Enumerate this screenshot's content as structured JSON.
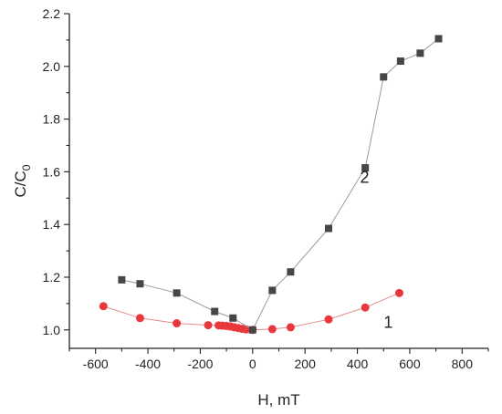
{
  "chart_data": {
    "type": "scatter",
    "title": "",
    "xlabel": "H, mT",
    "ylabel_main": "C/C",
    "ylabel_sub": "0",
    "xlim": [
      -700,
      900
    ],
    "ylim": [
      0.93,
      2.2
    ],
    "xticks": [
      -600,
      -400,
      -200,
      0,
      200,
      400,
      600,
      800
    ],
    "yticks": [
      1.0,
      1.2,
      1.4,
      1.6,
      1.8,
      2.0,
      2.2
    ],
    "grid": false,
    "series": [
      {
        "label": "1",
        "color": "#e8383c",
        "line_color": "#e58a8a",
        "marker": "circle",
        "label_anchor": [
          570,
          1.05
        ],
        "points": [
          [
            -570,
            1.09
          ],
          [
            -430,
            1.045
          ],
          [
            -290,
            1.025
          ],
          [
            -170,
            1.018
          ],
          [
            -130,
            1.017
          ],
          [
            -115,
            1.016
          ],
          [
            -100,
            1.015
          ],
          [
            -85,
            1.013
          ],
          [
            -70,
            1.01
          ],
          [
            -55,
            1.007
          ],
          [
            -40,
            1.004
          ],
          [
            -25,
            1.002
          ],
          [
            0,
            1.0
          ],
          [
            75,
            1.003
          ],
          [
            145,
            1.01
          ],
          [
            290,
            1.04
          ],
          [
            430,
            1.085
          ],
          [
            560,
            1.14
          ]
        ]
      },
      {
        "label": "2",
        "color": "#464646",
        "line_color": "#9a9a9a",
        "marker": "square",
        "label_anchor": [
          480,
          1.6
        ],
        "points": [
          [
            -500,
            1.19
          ],
          [
            -430,
            1.175
          ],
          [
            -290,
            1.14
          ],
          [
            -145,
            1.07
          ],
          [
            -75,
            1.045
          ],
          [
            0,
            1.0
          ],
          [
            75,
            1.15
          ],
          [
            145,
            1.22
          ],
          [
            290,
            1.385
          ],
          [
            430,
            1.615
          ],
          [
            500,
            1.96
          ],
          [
            565,
            2.02
          ],
          [
            640,
            2.05
          ],
          [
            710,
            2.105
          ]
        ]
      }
    ]
  }
}
